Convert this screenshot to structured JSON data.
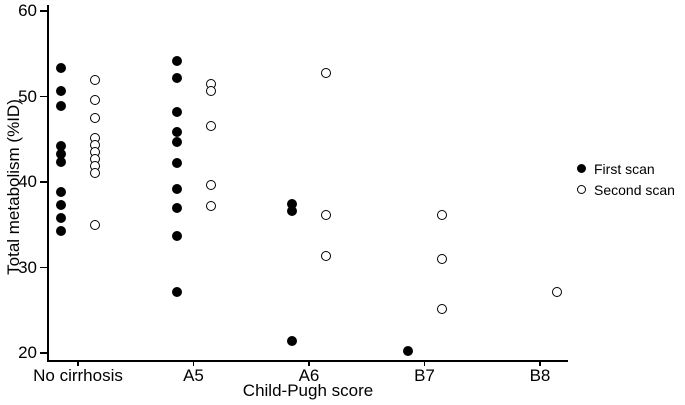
{
  "chart_data": {
    "type": "scatter",
    "title": "",
    "xlabel": "Child-Pugh score",
    "ylabel": "Total metabolism (%ID)",
    "ylim": [
      20,
      60
    ],
    "yticks": [
      60,
      50,
      40,
      30,
      20
    ],
    "categories": [
      "No cirrhosis",
      "A5",
      "A6",
      "B7",
      "B8"
    ],
    "grid": false,
    "legend_position": "right-middle",
    "marker_color": "#000000",
    "background": "#ffffff",
    "series": [
      {
        "name": "First scan",
        "marker": "filled",
        "values_by_category": [
          [
            53.3,
            50.6,
            48.9,
            44.2,
            43.3,
            42.4,
            38.8,
            37.3,
            35.8,
            34.3
          ],
          [
            54.1,
            52.2,
            48.2,
            45.9,
            44.7,
            42.2,
            39.2,
            37.0,
            33.7,
            27.2
          ],
          [
            37.4,
            36.6,
            21.4
          ],
          [
            20.2
          ],
          []
        ]
      },
      {
        "name": "Second scan",
        "marker": "open",
        "values_by_category": [
          [
            51.9,
            49.6,
            47.5,
            45.1,
            44.3,
            43.5,
            42.7,
            41.9,
            41.1,
            35.0
          ],
          [
            51.5,
            50.7,
            46.5,
            39.6,
            37.2
          ],
          [
            52.8,
            36.2,
            31.4
          ],
          [
            36.2,
            31.0,
            25.2
          ],
          [
            27.2
          ]
        ]
      }
    ]
  }
}
